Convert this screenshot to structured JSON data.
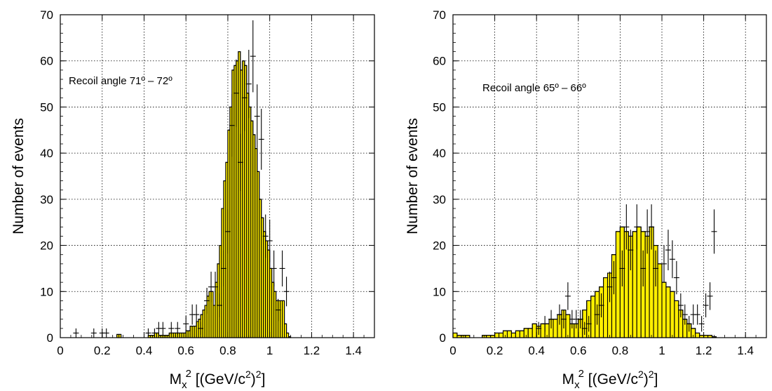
{
  "chart_data": [
    {
      "type": "bar",
      "panel": "left",
      "annotation": "Recoil angle 71º – 72º",
      "xlabel_main": "M",
      "xlabel_sub": "x",
      "xlabel_sup": "2",
      "xlabel_units_a": " [(GeV/c",
      "xlabel_units_sup": "2",
      "xlabel_units_b": ")",
      "xlabel_units_sup2": "2",
      "xlabel_units_c": "]",
      "ylabel": "Number of events",
      "xlim": [
        0,
        1.5
      ],
      "ylim": [
        0,
        70
      ],
      "xticks": [
        0,
        0.2,
        0.4,
        0.6,
        0.8,
        1.0,
        1.2,
        1.4
      ],
      "xtick_labels": [
        "0",
        "0.2",
        "0.4",
        "0.6",
        "0.8",
        "1",
        "1.2",
        "1.4"
      ],
      "yticks": [
        0,
        10,
        20,
        30,
        40,
        50,
        60,
        70
      ],
      "ytick_labels": [
        "0",
        "10",
        "20",
        "30",
        "40",
        "50",
        "60",
        "70"
      ],
      "grid": true,
      "fill_color": "#ffee00",
      "bin_width": 0.01,
      "histogram": {
        "x": [
          0.27,
          0.28,
          0.42,
          0.43,
          0.44,
          0.45,
          0.46,
          0.47,
          0.48,
          0.49,
          0.5,
          0.51,
          0.52,
          0.53,
          0.54,
          0.55,
          0.56,
          0.57,
          0.58,
          0.59,
          0.6,
          0.61,
          0.62,
          0.63,
          0.64,
          0.65,
          0.66,
          0.67,
          0.68,
          0.69,
          0.7,
          0.71,
          0.72,
          0.73,
          0.74,
          0.75,
          0.76,
          0.77,
          0.78,
          0.79,
          0.8,
          0.81,
          0.82,
          0.83,
          0.84,
          0.85,
          0.86,
          0.87,
          0.88,
          0.89,
          0.9,
          0.91,
          0.92,
          0.93,
          0.94,
          0.95,
          0.96,
          0.97,
          0.98,
          0.99,
          1.0,
          1.01,
          1.02,
          1.03,
          1.04,
          1.05,
          1.06,
          1.07,
          1.08,
          1.09
        ],
        "y": [
          0.7,
          0.7,
          0.5,
          0.5,
          0.5,
          1,
          1,
          0.5,
          0.5,
          0.5,
          0.5,
          0.5,
          1,
          1,
          1,
          1,
          1,
          1,
          1,
          1,
          1.5,
          1.5,
          2.5,
          2.5,
          2.5,
          3.5,
          4,
          5,
          6,
          7,
          9,
          10,
          10,
          7,
          12,
          16,
          20,
          28,
          34,
          38,
          45,
          50,
          58,
          59,
          60,
          62,
          58,
          60,
          59,
          53,
          50,
          47,
          44,
          41,
          36,
          30,
          26,
          23,
          21,
          19,
          15,
          12,
          10,
          8,
          8,
          8,
          8,
          3,
          1,
          0.2
        ]
      },
      "data_points": {
        "x": [
          0.075,
          0.16,
          0.2,
          0.22,
          0.42,
          0.45,
          0.47,
          0.49,
          0.53,
          0.56,
          0.6,
          0.63,
          0.65,
          0.67,
          0.7,
          0.72,
          0.74,
          0.76,
          0.78,
          0.8,
          0.82,
          0.84,
          0.86,
          0.88,
          0.9,
          0.92,
          0.94,
          0.96,
          0.98,
          1.0,
          1.02,
          1.04,
          1.06,
          1.08
        ],
        "y": [
          1,
          1,
          1,
          1,
          1,
          1,
          2,
          2,
          2,
          2,
          3,
          5,
          5,
          2,
          8,
          11,
          11,
          7,
          15,
          23,
          46,
          53,
          38,
          52,
          55,
          61,
          48,
          43,
          22,
          21,
          15,
          6,
          15,
          10
        ],
        "err": [
          1,
          1,
          1,
          1,
          1,
          1,
          1.4,
          1.4,
          1.4,
          1.4,
          1.7,
          2.2,
          2.2,
          1.4,
          2.8,
          3.3,
          3.3,
          2.6,
          3.9,
          4.8,
          6.8,
          7.3,
          6.2,
          7.2,
          7.4,
          7.8,
          6.9,
          6.6,
          4.7,
          4.6,
          3.9,
          2.4,
          3.9,
          3.2
        ]
      }
    },
    {
      "type": "bar",
      "panel": "right",
      "annotation": "Recoil angle 65º – 66º",
      "xlabel_main": "M",
      "xlabel_sub": "x",
      "xlabel_sup": "2",
      "xlabel_units_a": " [(GeV/c",
      "xlabel_units_sup": "2",
      "xlabel_units_b": ")",
      "xlabel_units_sup2": "2",
      "xlabel_units_c": "]",
      "ylabel": "Number of events",
      "xlim": [
        0,
        1.5
      ],
      "ylim": [
        0,
        70
      ],
      "xticks": [
        0,
        0.2,
        0.4,
        0.6,
        0.8,
        1.0,
        1.2,
        1.4
      ],
      "xtick_labels": [
        "0",
        "0.2",
        "0.4",
        "0.6",
        "0.8",
        "1",
        "1.2",
        "1.4"
      ],
      "yticks": [
        0,
        10,
        20,
        30,
        40,
        50,
        60,
        70
      ],
      "ytick_labels": [
        "0",
        "10",
        "20",
        "30",
        "40",
        "50",
        "60",
        "70"
      ],
      "grid": true,
      "fill_color": "#ffee00",
      "bin_width": 0.02,
      "histogram": {
        "x": [
          0.0,
          0.02,
          0.04,
          0.06,
          0.08,
          0.1,
          0.12,
          0.14,
          0.16,
          0.18,
          0.2,
          0.22,
          0.24,
          0.26,
          0.28,
          0.3,
          0.32,
          0.34,
          0.36,
          0.38,
          0.4,
          0.42,
          0.44,
          0.46,
          0.48,
          0.5,
          0.52,
          0.54,
          0.56,
          0.58,
          0.6,
          0.62,
          0.64,
          0.66,
          0.68,
          0.7,
          0.72,
          0.74,
          0.76,
          0.78,
          0.8,
          0.82,
          0.84,
          0.86,
          0.88,
          0.9,
          0.92,
          0.94,
          0.96,
          0.98,
          1.0,
          1.02,
          1.04,
          1.06,
          1.08,
          1.1,
          1.12,
          1.14,
          1.16,
          1.18,
          1.2,
          1.22,
          1.24
        ],
        "y": [
          1,
          0.5,
          0.5,
          0.5,
          0,
          0,
          0,
          0.5,
          0.5,
          0.5,
          1,
          1,
          1.5,
          1.5,
          1,
          1.5,
          1.5,
          2,
          2,
          3,
          2.5,
          3,
          3,
          4,
          4,
          5,
          6,
          5,
          3,
          3,
          4,
          6,
          8,
          9,
          10,
          11,
          13,
          14,
          18,
          23,
          24,
          23,
          22,
          23,
          24,
          23,
          22,
          24,
          20,
          16,
          12,
          11,
          10,
          8,
          6,
          4,
          3,
          2,
          1,
          0.5,
          0.5,
          0.5,
          0.2
        ]
      },
      "data_points": {
        "x": [
          0.41,
          0.44,
          0.47,
          0.51,
          0.53,
          0.55,
          0.57,
          0.59,
          0.61,
          0.63,
          0.65,
          0.69,
          0.71,
          0.75,
          0.77,
          0.81,
          0.83,
          0.85,
          0.88,
          0.91,
          0.93,
          0.95,
          0.97,
          1.01,
          1.03,
          1.05,
          1.07,
          1.09,
          1.11,
          1.13,
          1.15,
          1.17,
          1.19,
          1.21,
          1.23,
          1.25
        ],
        "y": [
          2,
          3,
          4,
          5,
          4,
          9,
          4,
          4,
          4,
          2,
          3,
          5,
          7,
          11,
          13,
          15,
          24,
          19,
          24,
          15,
          23,
          24,
          15,
          16,
          19,
          17,
          13,
          7,
          5,
          3,
          5,
          5,
          3,
          7,
          9,
          23
        ],
        "err": [
          1.4,
          1.7,
          2,
          2.2,
          2,
          3,
          2,
          2,
          2,
          1.4,
          1.7,
          2.2,
          2.6,
          3.3,
          3.6,
          3.9,
          4.9,
          4.4,
          4.9,
          3.9,
          4.8,
          4.9,
          3.9,
          4,
          4.4,
          4.1,
          3.6,
          2.6,
          2.2,
          1.7,
          2.2,
          2.2,
          1.7,
          2.6,
          3,
          4.8
        ]
      }
    }
  ]
}
